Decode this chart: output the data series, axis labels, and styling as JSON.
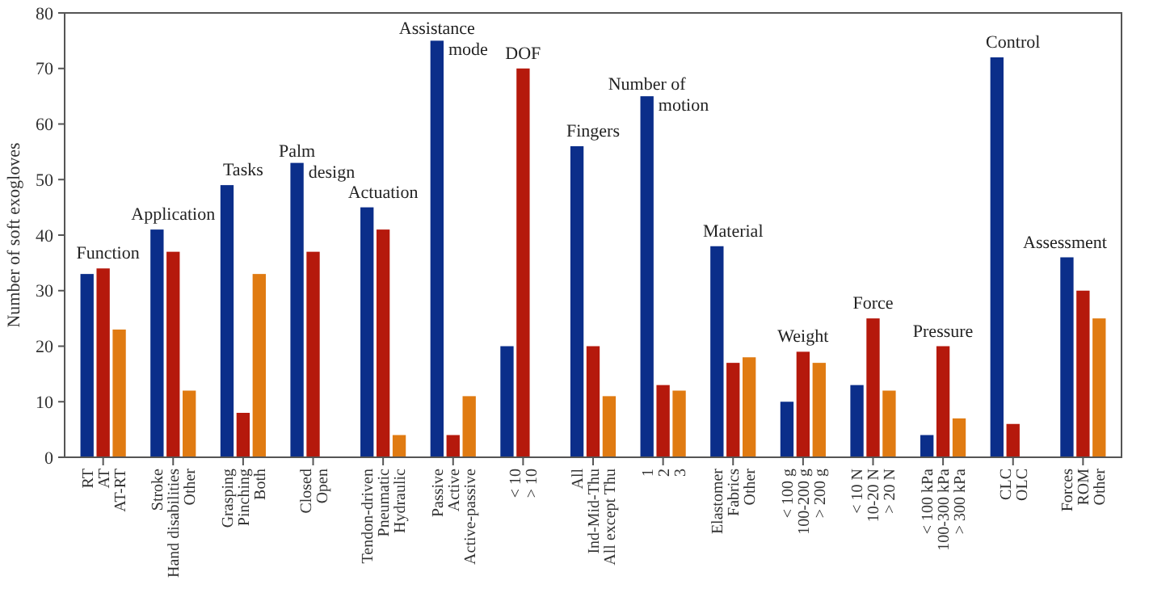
{
  "chart_data": {
    "type": "bar",
    "ylabel": "Number of soft exogloves",
    "categories": [
      "RT\nAT\nAT-RT",
      "Stroke\nHand disabilities\nOther",
      "Grasping\nPinching\nBoth",
      "Closed\nOpen",
      "Tendon-driven\nPneumatic\nHydraulic",
      "Passive\nActive\nActive-passive",
      "< 10\n> 10",
      "All\nInd-Mid-Thu\nAll except Thu",
      "1\n2\n3",
      "Elastomer\nFabrics\nOther",
      "< 100 g\n100-200 g\n> 200 g",
      "< 10 N\n10-20 N\n> 20 N",
      "< 100 kPa\n100-300 kPa\n> 300 kPa",
      "CLC\nOLC",
      "Forces\nROM\nOther"
    ],
    "series": [
      {
        "color": "#0b2e8a",
        "values": [
          33,
          41,
          49,
          53,
          45,
          75,
          20,
          56,
          65,
          38,
          10,
          13,
          4,
          72,
          36
        ]
      },
      {
        "color": "#b5190c",
        "values": [
          34,
          37,
          8,
          37,
          41,
          4,
          70,
          20,
          13,
          17,
          19,
          25,
          20,
          6,
          30
        ]
      },
      {
        "color": "#e07b12",
        "values": [
          23,
          12,
          33,
          null,
          4,
          11,
          null,
          11,
          12,
          18,
          17,
          12,
          7,
          null,
          25
        ]
      }
    ],
    "ylim": [
      0,
      80
    ],
    "yticks": [
      0,
      10,
      20,
      30,
      40,
      50,
      60,
      70,
      80
    ],
    "grid": false,
    "annotations": [
      "Function",
      "Application",
      "Tasks",
      "Palm\ndesign",
      "Actuation",
      "Assistance\nmode",
      "DOF",
      "Fingers",
      "Number of\nmotion",
      "Material",
      "Weight",
      "Force",
      "Pressure",
      "Control",
      "Assessment"
    ]
  }
}
